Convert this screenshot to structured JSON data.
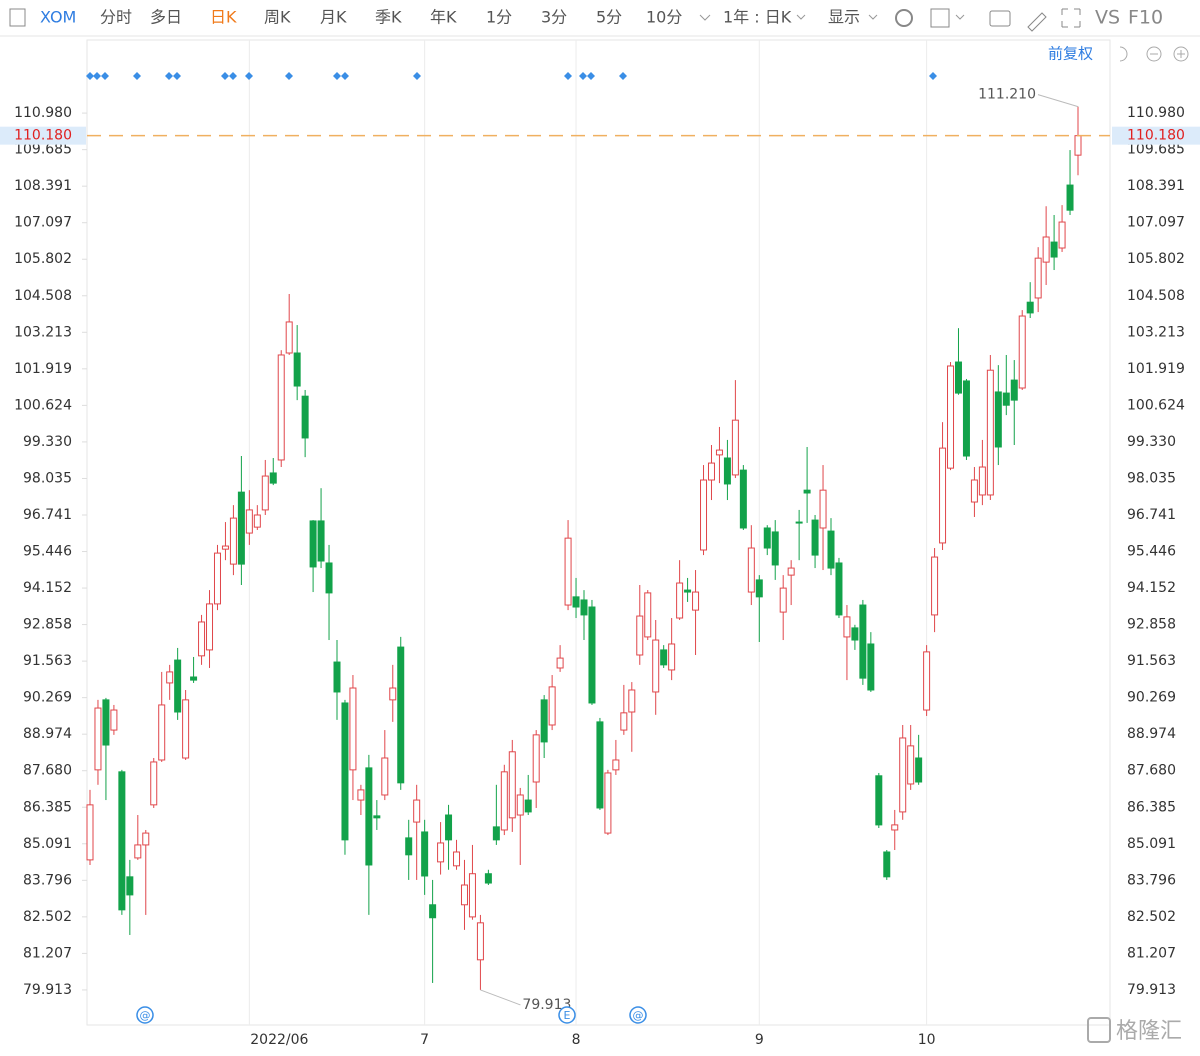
{
  "toolbar": {
    "symbol": "XOM",
    "periods": [
      "分时",
      "多日",
      "日K",
      "周K",
      "月K",
      "季K",
      "年K",
      "1分",
      "3分",
      "5分",
      "10分"
    ],
    "range": "1年 : 日K",
    "display": "显示",
    "compare": "VS",
    "f10": "F10"
  },
  "adjust": "前复权",
  "watermark": "格隆汇",
  "event_icons": [
    "@",
    "E",
    "@"
  ],
  "chart_data": {
    "type": "candlestick",
    "up_color": "#e0464a",
    "down_color": "#12a24a",
    "ylim": [
      78.67,
      113.57
    ],
    "yticks": [
      {
        "value": 110.98,
        "label": "110.980"
      },
      109.685,
      108.391,
      107.097,
      105.802,
      104.508,
      103.213,
      101.919,
      100.624,
      {
        "value": 99.33,
        "label": "99.330"
      },
      98.035,
      96.741,
      95.446,
      94.152,
      92.858,
      91.563,
      90.269,
      88.974,
      {
        "value": 87.68,
        "label": "87.680"
      },
      86.385,
      85.091,
      83.796,
      82.502,
      81.207,
      79.913
    ],
    "xticks": [
      {
        "value": 20,
        "label": "2022/06"
      },
      {
        "value": 42,
        "label": "7"
      },
      {
        "value": 61,
        "label": "8"
      },
      {
        "value": 84,
        "label": "9"
      },
      {
        "value": 105,
        "label": "10"
      }
    ],
    "grid": true,
    "last_price": {
      "value": 110.18,
      "label": "110.180",
      "color": "#f0b060"
    },
    "max_label": "111.210",
    "min_label": "79.913",
    "open": [
      84.52,
      87.71,
      90.19,
      89.12,
      87.64,
      83.92,
      84.59,
      85.05,
      86.47,
      88.06,
      90.79,
      91.6,
      88.13,
      91.0,
      91.75,
      91.96,
      93.59,
      95.53,
      95.0,
      97.55,
      96.1,
      96.31,
      96.92,
      98.23,
      98.69,
      102.48,
      102.48,
      100.95,
      96.53,
      96.53,
      95.04,
      91.53,
      90.08,
      87.71,
      86.64,
      87.78,
      86.08,
      86.82,
      90.19,
      92.06,
      85.3,
      85.86,
      85.51,
      82.93,
      84.45,
      86.11,
      84.31,
      82.93,
      82.5,
      80.98,
      84.03,
      85.69,
      85.58,
      86.01,
      86.11,
      86.64,
      87.28,
      90.19,
      89.3,
      91.32,
      93.55,
      93.84,
      93.73,
      93.48,
      89.41,
      85.47,
      87.71,
      89.12,
      89.76,
      91.78,
      92.42,
      90.47,
      91.96,
      91.25,
      93.09,
      94.08,
      93.37,
      95.5,
      97.98,
      98.87,
      98.76,
      98.16,
      98.33,
      94.01,
      94.44,
      96.28,
      96.14,
      93.3,
      94.61,
      96.49,
      97.62,
      96.56,
      96.28,
      96.17,
      95.04,
      92.42,
      92.74,
      93.55,
      92.17,
      87.5,
      84.8,
      85.58,
      86.22,
      87.21,
      88.13,
      89.83,
      93.2,
      95.75,
      98.4,
      102.16,
      101.49,
      97.2,
      97.45,
      97.45,
      101.1,
      101.06,
      101.52,
      101.24,
      104.28,
      104.43,
      105.7,
      106.41,
      106.2,
      108.43,
      109.49
    ],
    "high": [
      87.0,
      90.19,
      90.26,
      90.01,
      87.71,
      84.52,
      86.11,
      85.58,
      88.13,
      91.18,
      91.43,
      92.03,
      90.54,
      91.71,
      93.2,
      94.08,
      95.68,
      96.49,
      97.09,
      98.83,
      97.62,
      97.09,
      98.69,
      98.76,
      102.58,
      104.57,
      103.47,
      101.17,
      96.56,
      97.69,
      95.68,
      92.31,
      90.19,
      91.07,
      87.18,
      88.24,
      86.64,
      89.12,
      91.43,
      92.42,
      85.94,
      87.18,
      85.94,
      83.81,
      85.86,
      86.47,
      85.23,
      84.52,
      85.05,
      82.57,
      84.17,
      87.18,
      87.89,
      88.77,
      87.07,
      87.53,
      89.12,
      90.36,
      91.07,
      92.13,
      96.56,
      94.51,
      94.08,
      93.73,
      89.55,
      87.71,
      88.77,
      90.72,
      90.82,
      94.26,
      94.08,
      93.02,
      92.13,
      93.09,
      95.14,
      94.51,
      94.79,
      98.51,
      99.22,
      99.86,
      99.4,
      101.52,
      98.51,
      96.38,
      94.61,
      96.38,
      96.56,
      94.61,
      95.14,
      96.92,
      99.15,
      96.74,
      98.51,
      96.63,
      95.22,
      93.55,
      92.85,
      93.73,
      92.59,
      87.6,
      84.87,
      86.29,
      89.3,
      89.3,
      88.95,
      92.13,
      95.57,
      100.03,
      102.16,
      103.36,
      101.56,
      98.44,
      99.4,
      102.41,
      102.05,
      102.41,
      102.23,
      104.0,
      104.99,
      106.23,
      107.68,
      107.37,
      107.72,
      109.67,
      111.21
    ],
    "low": [
      84.34,
      87.18,
      86.64,
      88.95,
      82.57,
      81.86,
      84.52,
      82.57,
      86.36,
      87.99,
      90.19,
      89.48,
      88.06,
      90.79,
      91.43,
      91.32,
      93.37,
      95.14,
      94.61,
      94.26,
      95.68,
      96.21,
      96.74,
      97.8,
      98.44,
      102.41,
      100.81,
      98.79,
      94.01,
      94.86,
      92.31,
      89.48,
      84.7,
      86.64,
      86.11,
      82.57,
      85.58,
      86.64,
      89.41,
      87.0,
      83.81,
      83.81,
      83.28,
      80.16,
      84.0,
      84.17,
      84.17,
      82.04,
      82.4,
      79.913,
      83.63,
      85.05,
      85.4,
      85.51,
      84.34,
      86.11,
      86.36,
      88.13,
      89.12,
      91.18,
      93.37,
      93.09,
      92.31,
      90.01,
      86.29,
      85.4,
      87.53,
      88.95,
      88.35,
      91.43,
      92.31,
      89.66,
      91.32,
      90.89,
      93.02,
      93.66,
      91.78,
      95.32,
      97.27,
      97.87,
      97.27,
      98.05,
      96.21,
      93.55,
      92.24,
      95.32,
      94.44,
      92.31,
      93.55,
      95.14,
      96.46,
      94.86,
      94.79,
      94.61,
      93.09,
      90.89,
      91.96,
      90.72,
      90.47,
      85.65,
      83.81,
      84.87,
      85.94,
      87.0,
      87.18,
      89.62,
      92.59,
      95.5,
      98.33,
      101.0,
      98.69,
      96.67,
      97.09,
      97.27,
      98.51,
      100.28,
      99.22,
      101.17,
      103.72,
      103.93,
      104.89,
      105.42,
      106.06,
      107.37,
      108.78
    ],
    "close": [
      86.47,
      89.9,
      88.59,
      89.83,
      82.75,
      83.28,
      85.05,
      85.47,
      87.99,
      90.01,
      91.18,
      89.76,
      90.19,
      90.89,
      92.95,
      93.59,
      95.39,
      95.64,
      96.63,
      95.0,
      96.92,
      96.74,
      98.12,
      97.87,
      102.41,
      103.58,
      101.31,
      99.47,
      94.9,
      95.11,
      93.98,
      90.47,
      85.23,
      90.61,
      87.0,
      84.34,
      86.01,
      88.13,
      90.61,
      87.25,
      84.7,
      86.64,
      83.95,
      82.47,
      85.12,
      85.23,
      84.8,
      83.63,
      84.03,
      82.29,
      83.7,
      85.23,
      87.64,
      88.35,
      86.82,
      86.22,
      88.95,
      88.7,
      90.65,
      91.67,
      95.92,
      93.48,
      93.2,
      90.08,
      86.36,
      87.6,
      88.06,
      89.73,
      90.54,
      93.16,
      93.98,
      92.31,
      91.43,
      92.17,
      94.33,
      94.01,
      94.01,
      97.98,
      98.58,
      99.04,
      97.84,
      100.1,
      96.28,
      95.57,
      93.84,
      95.57,
      94.97,
      94.15,
      94.86,
      96.46,
      97.52,
      95.32,
      97.62,
      94.86,
      93.2,
      93.13,
      92.31,
      90.96,
      90.54,
      85.76,
      83.92,
      85.76,
      88.84,
      88.56,
      87.28,
      91.89,
      95.25,
      99.11,
      102.02,
      101.06,
      98.83,
      97.98,
      98.44,
      101.87,
      99.15,
      100.63,
      100.81,
      103.79,
      103.9,
      105.84,
      106.59,
      105.88,
      107.12,
      107.54,
      110.18
    ]
  }
}
